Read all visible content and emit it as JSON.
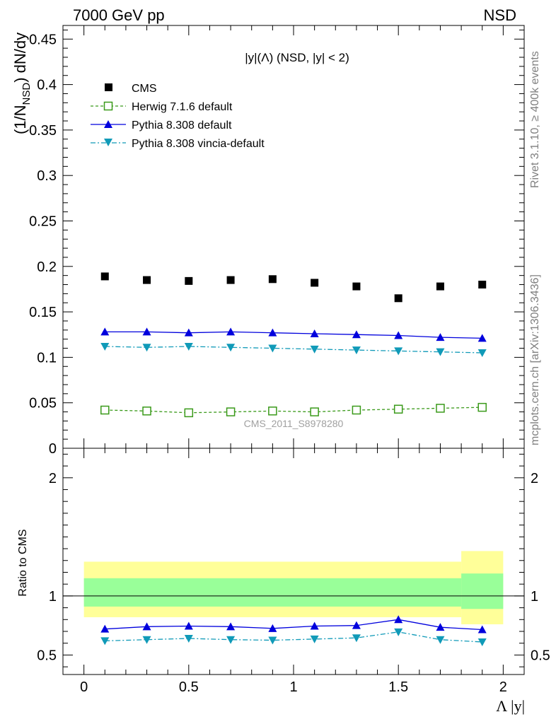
{
  "header": {
    "left": "7000 GeV pp",
    "right": "NSD"
  },
  "side_text": {
    "rivet": "Rivet 3.1.10, ≥ 400k events",
    "mcplots": "mcplots.cern.ch [arXiv:1306.3436]"
  },
  "watermark": "CMS_2011_S8978280",
  "plot_title": "|y|(Λ) (NSD, |y| < 2)",
  "colors": {
    "cms": "#000000",
    "herwig": "#3a9a1a",
    "pythia": "#0000dd",
    "vincia": "#109ab8",
    "band_inner": "#99ff99",
    "band_outer": "#ffff99"
  },
  "chart_data": [
    {
      "type": "scatter",
      "title": "|y|(Λ) (NSD, |y| < 2)",
      "ylabel_main": "(1/N",
      "ylabel_sub": "NSD",
      "ylabel_rest": ") dN/dy",
      "xlim": [
        -0.1,
        2.1
      ],
      "ylim": [
        0,
        0.465
      ],
      "yticks": [
        0,
        0.05,
        0.1,
        0.15,
        0.2,
        0.25,
        0.3,
        0.35,
        0.4,
        0.45
      ],
      "yticklabels": [
        "0",
        "0.05",
        "0.1",
        "0.15",
        "0.2",
        "0.25",
        "0.3",
        "0.35",
        "0.4",
        "0.45"
      ],
      "x": [
        0.1,
        0.3,
        0.5,
        0.7,
        0.9,
        1.1,
        1.3,
        1.5,
        1.7,
        1.9
      ],
      "series": [
        {
          "name": "CMS",
          "key": "cms",
          "marker": "square-filled",
          "values": [
            0.189,
            0.185,
            0.184,
            0.185,
            0.186,
            0.182,
            0.178,
            0.165,
            0.178,
            0.18
          ]
        },
        {
          "name": "Herwig 7.1.6 default",
          "key": "herwig",
          "marker": "square-open",
          "line": "dashed",
          "values": [
            0.042,
            0.041,
            0.039,
            0.04,
            0.041,
            0.04,
            0.042,
            0.043,
            0.044,
            0.045
          ]
        },
        {
          "name": "Pythia 8.308 default",
          "key": "pythia",
          "marker": "triangle-up",
          "line": "solid",
          "values": [
            0.128,
            0.128,
            0.127,
            0.128,
            0.127,
            0.126,
            0.125,
            0.124,
            0.122,
            0.121
          ]
        },
        {
          "name": "Pythia 8.308 vincia-default",
          "key": "vincia",
          "marker": "triangle-down",
          "line": "dashdot",
          "values": [
            0.112,
            0.111,
            0.112,
            0.111,
            0.11,
            0.109,
            0.108,
            0.107,
            0.106,
            0.105
          ]
        }
      ],
      "legend_position": "top-left",
      "grid": false
    },
    {
      "type": "line",
      "ylabel": "Ratio to CMS",
      "xlabel": "Λ |y|",
      "xlim": [
        -0.1,
        2.1
      ],
      "ylim": [
        0.335,
        2.25
      ],
      "xticks": [
        0,
        0.5,
        1,
        1.5,
        2
      ],
      "xticklabels": [
        "0",
        "0.5",
        "1",
        "1.5",
        "2"
      ],
      "yticks": [
        0.5,
        1,
        2
      ],
      "yticklabels": [
        "0.5",
        "1",
        "2"
      ],
      "x": [
        0.1,
        0.3,
        0.5,
        0.7,
        0.9,
        1.1,
        1.3,
        1.5,
        1.7,
        1.9
      ],
      "bands": [
        {
          "x0": 0.0,
          "x1": 1.8,
          "outer": [
            0.82,
            1.29
          ],
          "inner": [
            0.91,
            1.15
          ]
        },
        {
          "x0": 1.8,
          "x1": 2.0,
          "outer": [
            0.76,
            1.38
          ],
          "inner": [
            0.89,
            1.19
          ]
        }
      ],
      "series": [
        {
          "name": "Pythia 8.308 default",
          "key": "pythia",
          "marker": "triangle-up",
          "line": "solid",
          "values": [
            0.72,
            0.74,
            0.745,
            0.74,
            0.725,
            0.745,
            0.75,
            0.8,
            0.735,
            0.715
          ]
        },
        {
          "name": "Pythia 8.308 vincia-default",
          "key": "vincia",
          "marker": "triangle-down",
          "line": "dashdot",
          "values": [
            0.62,
            0.63,
            0.64,
            0.63,
            0.625,
            0.635,
            0.645,
            0.695,
            0.63,
            0.61
          ]
        }
      ]
    }
  ]
}
